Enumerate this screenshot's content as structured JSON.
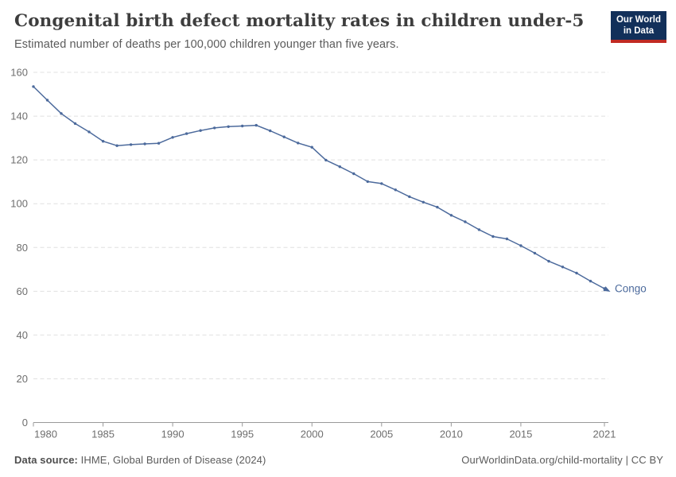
{
  "header": {
    "title": "Congenital birth defect mortality rates in children under-5",
    "subtitle": "Estimated number of deaths per 100,000 children younger than five years."
  },
  "logo": {
    "line1": "Our World",
    "line2": "in Data",
    "bg_color": "#12305a",
    "accent_color": "#c12a22"
  },
  "colors": {
    "line": "#4c6a9c",
    "end_label": "#4c6a9c",
    "grid": "#e0e0e0",
    "axis": "#999999",
    "tick_label": "#6e6e6e",
    "title": "#3d3d3d",
    "subtitle": "#5b5b5b",
    "footer": "#5b5b5b"
  },
  "chart_data": {
    "type": "line",
    "title": "Congenital birth defect mortality rates in children under-5",
    "subtitle": "Estimated number of deaths per 100,000 children younger than five years.",
    "xlabel": "",
    "ylabel": "",
    "ylim": [
      0,
      160
    ],
    "yticks": [
      0,
      20,
      40,
      60,
      80,
      100,
      120,
      140,
      160
    ],
    "xticks": [
      1980,
      1985,
      1990,
      1995,
      2000,
      2005,
      2010,
      2015,
      2021
    ],
    "grid": "horizontal-dashed",
    "legend_position": "end-of-line-label",
    "x": [
      1980,
      1981,
      1982,
      1983,
      1984,
      1985,
      1986,
      1987,
      1988,
      1989,
      1990,
      1991,
      1992,
      1993,
      1994,
      1995,
      1996,
      1997,
      1998,
      1999,
      2000,
      2001,
      2002,
      2003,
      2004,
      2005,
      2006,
      2007,
      2008,
      2009,
      2010,
      2011,
      2012,
      2013,
      2014,
      2015,
      2016,
      2017,
      2018,
      2019,
      2020,
      2021
    ],
    "series": [
      {
        "name": "Congo",
        "values": [
          153.5,
          147.3,
          141.2,
          136.6,
          132.8,
          128.5,
          126.5,
          127.0,
          127.3,
          127.6,
          130.3,
          132.0,
          133.4,
          134.6,
          135.2,
          135.5,
          135.8,
          133.3,
          130.5,
          127.7,
          125.8,
          119.9,
          116.9,
          113.7,
          110.1,
          109.2,
          106.3,
          103.2,
          100.7,
          98.4,
          94.7,
          91.7,
          88.1,
          85.0,
          83.9,
          80.8,
          77.4,
          73.7,
          71.1,
          68.3,
          64.6,
          61.2
        ]
      }
    ]
  },
  "footer": {
    "source_label": "Data source:",
    "source_text": " IHME, Global Burden of Disease (2024)",
    "credit": "OurWorldinData.org/child-mortality | CC BY"
  }
}
